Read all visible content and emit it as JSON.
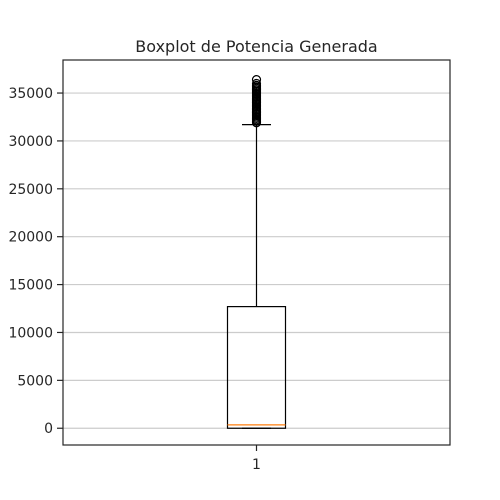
{
  "chart_data": {
    "type": "boxplot",
    "title": "Boxplot de Potencia Generada",
    "xlabel": "",
    "ylabel": "",
    "categories": [
      "1"
    ],
    "boxes": [
      {
        "label": "1",
        "whisker_low": 0,
        "q1": 0,
        "median": 350,
        "q3": 12700,
        "whisker_high": 31700,
        "outliers_min": 31900,
        "outliers_max": 36400,
        "outliers": [
          31900,
          32050,
          32200,
          32350,
          32500,
          32650,
          32800,
          32950,
          33100,
          33250,
          33400,
          33550,
          33700,
          33850,
          34000,
          34150,
          34300,
          34450,
          34600,
          34750,
          34900,
          35050,
          35200,
          35350,
          35500,
          35650,
          35800,
          36000,
          36400
        ]
      }
    ],
    "ylim": [
      -1750,
      38450
    ],
    "yticks": [
      0,
      5000,
      10000,
      15000,
      20000,
      25000,
      30000,
      35000
    ],
    "grid": "y"
  },
  "colors": {
    "median": "#ff7f0e",
    "box": "#000000",
    "grid": "#cccccc",
    "axes": "#262626"
  }
}
